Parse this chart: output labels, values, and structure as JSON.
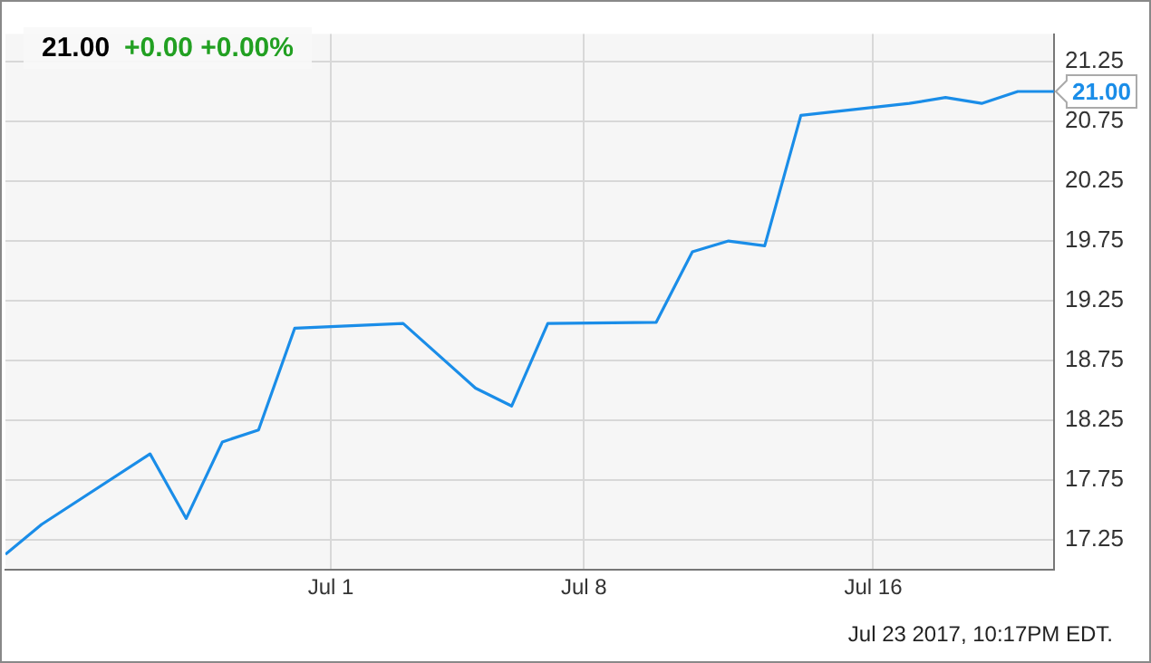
{
  "chart_data": {
    "type": "line",
    "title": "21.00",
    "subtitle": "+0.00 +0.00%",
    "x": [
      "2017-06-22",
      "2017-06-23",
      "2017-06-26",
      "2017-06-27",
      "2017-06-28",
      "2017-06-29",
      "2017-06-30",
      "2017-07-03",
      "2017-07-05",
      "2017-07-06",
      "2017-07-07",
      "2017-07-10",
      "2017-07-11",
      "2017-07-12",
      "2017-07-13",
      "2017-07-14",
      "2017-07-17",
      "2017-07-18",
      "2017-07-19",
      "2017-07-20",
      "2017-07-21"
    ],
    "series": [
      {
        "color": "#1a8de8",
        "values": [
          17.13,
          17.38,
          17.97,
          17.43,
          18.07,
          18.17,
          19.02,
          19.06,
          18.52,
          18.37,
          19.06,
          19.07,
          19.66,
          19.75,
          19.71,
          20.8,
          20.9,
          20.95,
          20.9,
          21.0,
          21.0
        ]
      }
    ],
    "xlim": [
      "2017-06-22",
      "2017-07-21"
    ],
    "xticks": [
      {
        "value": "2017-07-01",
        "label": "Jul 1"
      },
      {
        "value": "2017-07-08",
        "label": "Jul 8"
      },
      {
        "value": "2017-07-16",
        "label": "Jul 16"
      }
    ],
    "ylim": [
      17.0,
      21.48
    ],
    "yticks": [
      17.25,
      17.75,
      18.25,
      18.75,
      19.25,
      19.75,
      20.25,
      20.75,
      21.25
    ],
    "grid": true,
    "legend": false,
    "marker": "none",
    "line_style": "solid",
    "annotations": [
      {
        "text": "21.00",
        "x": "2017-07-21",
        "y": 21.0
      },
      "Jul 23 2017, 10:17PM EDT."
    ]
  }
}
